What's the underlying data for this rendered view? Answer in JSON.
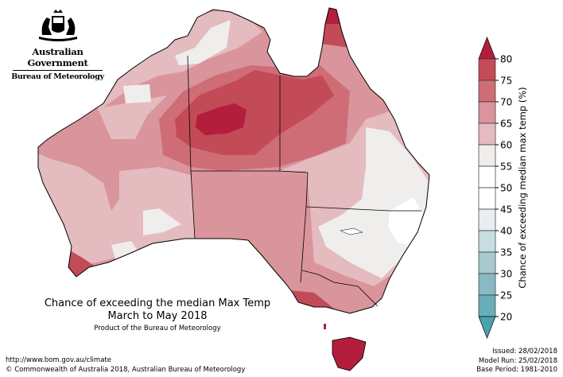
{
  "logo": {
    "government": "Australian Government",
    "agency": "Bureau of Meteorology"
  },
  "title": {
    "line1": "Chance of exceeding the median Max Temp",
    "line2": "March to May 2018",
    "product": "Product of the Bureau of Meteorology"
  },
  "footer": {
    "url": "http://www.bom.gov.au/climate",
    "copyright": "© Commonwealth of Australia 2018, Australian Bureau of Meteorology"
  },
  "meta": {
    "issued": "Issued: 28/02/2018",
    "model_run": "Model Run: 25/02/2018",
    "base_period": "Base Period: 1981-2010"
  },
  "legend": {
    "label": "Chance of exceeding median max temp (%)",
    "ticks": [
      "80",
      "75",
      "70",
      "65",
      "60",
      "55",
      "50",
      "45",
      "40",
      "35",
      "30",
      "25",
      "20"
    ],
    "over_color": "#b21e3c",
    "under_color": "#4aa1b1",
    "bins": [
      {
        "range": "75-80",
        "color": "#c34a57"
      },
      {
        "range": "70-75",
        "color": "#cf6d77"
      },
      {
        "range": "65-70",
        "color": "#d9959b"
      },
      {
        "range": "60-65",
        "color": "#e4bbbf"
      },
      {
        "range": "55-60",
        "color": "#efeeec"
      },
      {
        "range": "50-55",
        "color": "#ffffff"
      },
      {
        "range": "45-50",
        "color": "#ffffff"
      },
      {
        "range": "40-45",
        "color": "#e8eef1"
      },
      {
        "range": "35-40",
        "color": "#c7dde0"
      },
      {
        "range": "30-35",
        "color": "#a8c9ce"
      },
      {
        "range": "25-30",
        "color": "#8ab9c4"
      },
      {
        "range": "20-25",
        "color": "#6aadbb"
      }
    ]
  }
}
